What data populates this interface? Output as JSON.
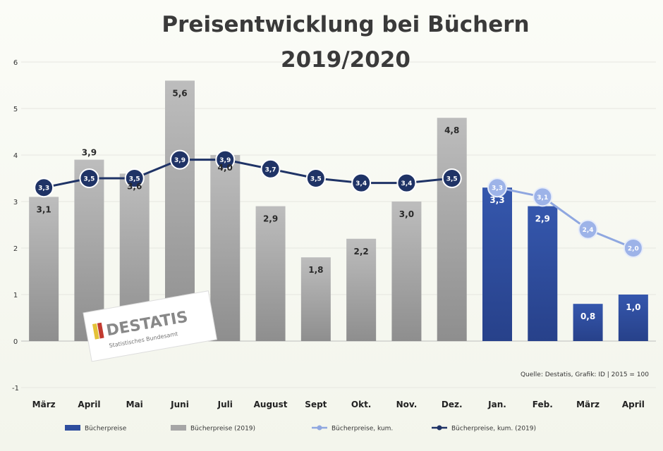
{
  "chart_data": {
    "type": "bar",
    "title": [
      "Preisentwicklung bei Büchern",
      "2019/2020"
    ],
    "categories": [
      "März",
      "April",
      "Mai",
      "Juni",
      "Juli",
      "August",
      "Sept",
      "Okt.",
      "Nov.",
      "Dez.",
      "Jan.",
      "Feb.",
      "März",
      "April"
    ],
    "ylim": [
      -1,
      6
    ],
    "yticks": [
      -1,
      0,
      1,
      2,
      3,
      4,
      5,
      6
    ],
    "series": [
      {
        "name": "Bücherpreise 2019",
        "kind": "bar",
        "color": "#a6a6a6",
        "values": [
          3.1,
          3.9,
          3.6,
          5.6,
          4.0,
          2.9,
          1.8,
          2.2,
          3.0,
          4.8,
          null,
          null,
          null,
          null
        ],
        "labels": [
          "3,1",
          "3,9",
          "3,6",
          "5,6",
          "4,0",
          "2,9",
          "1,8",
          "2,2",
          "3,0",
          "4,8",
          "",
          "",
          "",
          ""
        ]
      },
      {
        "name": "Bücherpreise",
        "kind": "bar",
        "color": "#2e4d9e",
        "values": [
          null,
          null,
          null,
          null,
          null,
          null,
          null,
          null,
          null,
          null,
          3.3,
          2.9,
          0.8,
          1.0
        ],
        "labels": [
          "",
          "",
          "",
          "",
          "",
          "",
          "",
          "",
          "",
          "",
          "3,3",
          "2,9",
          "0,8",
          "1,0"
        ]
      },
      {
        "name": "Bücherpreise, kum. 2019",
        "kind": "line",
        "color": "#1f3366",
        "values": [
          3.3,
          3.5,
          3.5,
          3.9,
          3.9,
          3.7,
          3.5,
          3.4,
          3.4,
          3.5,
          null,
          null,
          null,
          null
        ],
        "labels": [
          "3,3",
          "3,5",
          "3,5",
          "3,9",
          "3,9",
          "3,7",
          "3,5",
          "3,4",
          "3,4",
          "3,5",
          "",
          "",
          "",
          ""
        ]
      },
      {
        "name": "Bücherpreise, kum.",
        "kind": "line",
        "color": "#8fa7e0",
        "values": [
          null,
          null,
          null,
          null,
          null,
          null,
          null,
          null,
          null,
          null,
          3.3,
          3.1,
          2.4,
          2.0
        ],
        "labels": [
          "",
          "",
          "",
          "",
          "",
          "",
          "",
          "",
          "",
          "",
          "3,3",
          "3,1",
          "2,4",
          "2,0"
        ]
      }
    ],
    "source": "Quelle: Destatis, Grafik: ID | 2015 = 100",
    "legend": [
      "Bücherpreise",
      "Bücherpreise (2019)",
      "Bücherpreise, kum.",
      "Bücherpreise, kum. (2019)"
    ],
    "legend_position": "bottom",
    "grid": true,
    "logo": {
      "word": "DESTATIS",
      "tagline": "Statistisches Bundesamt"
    }
  }
}
